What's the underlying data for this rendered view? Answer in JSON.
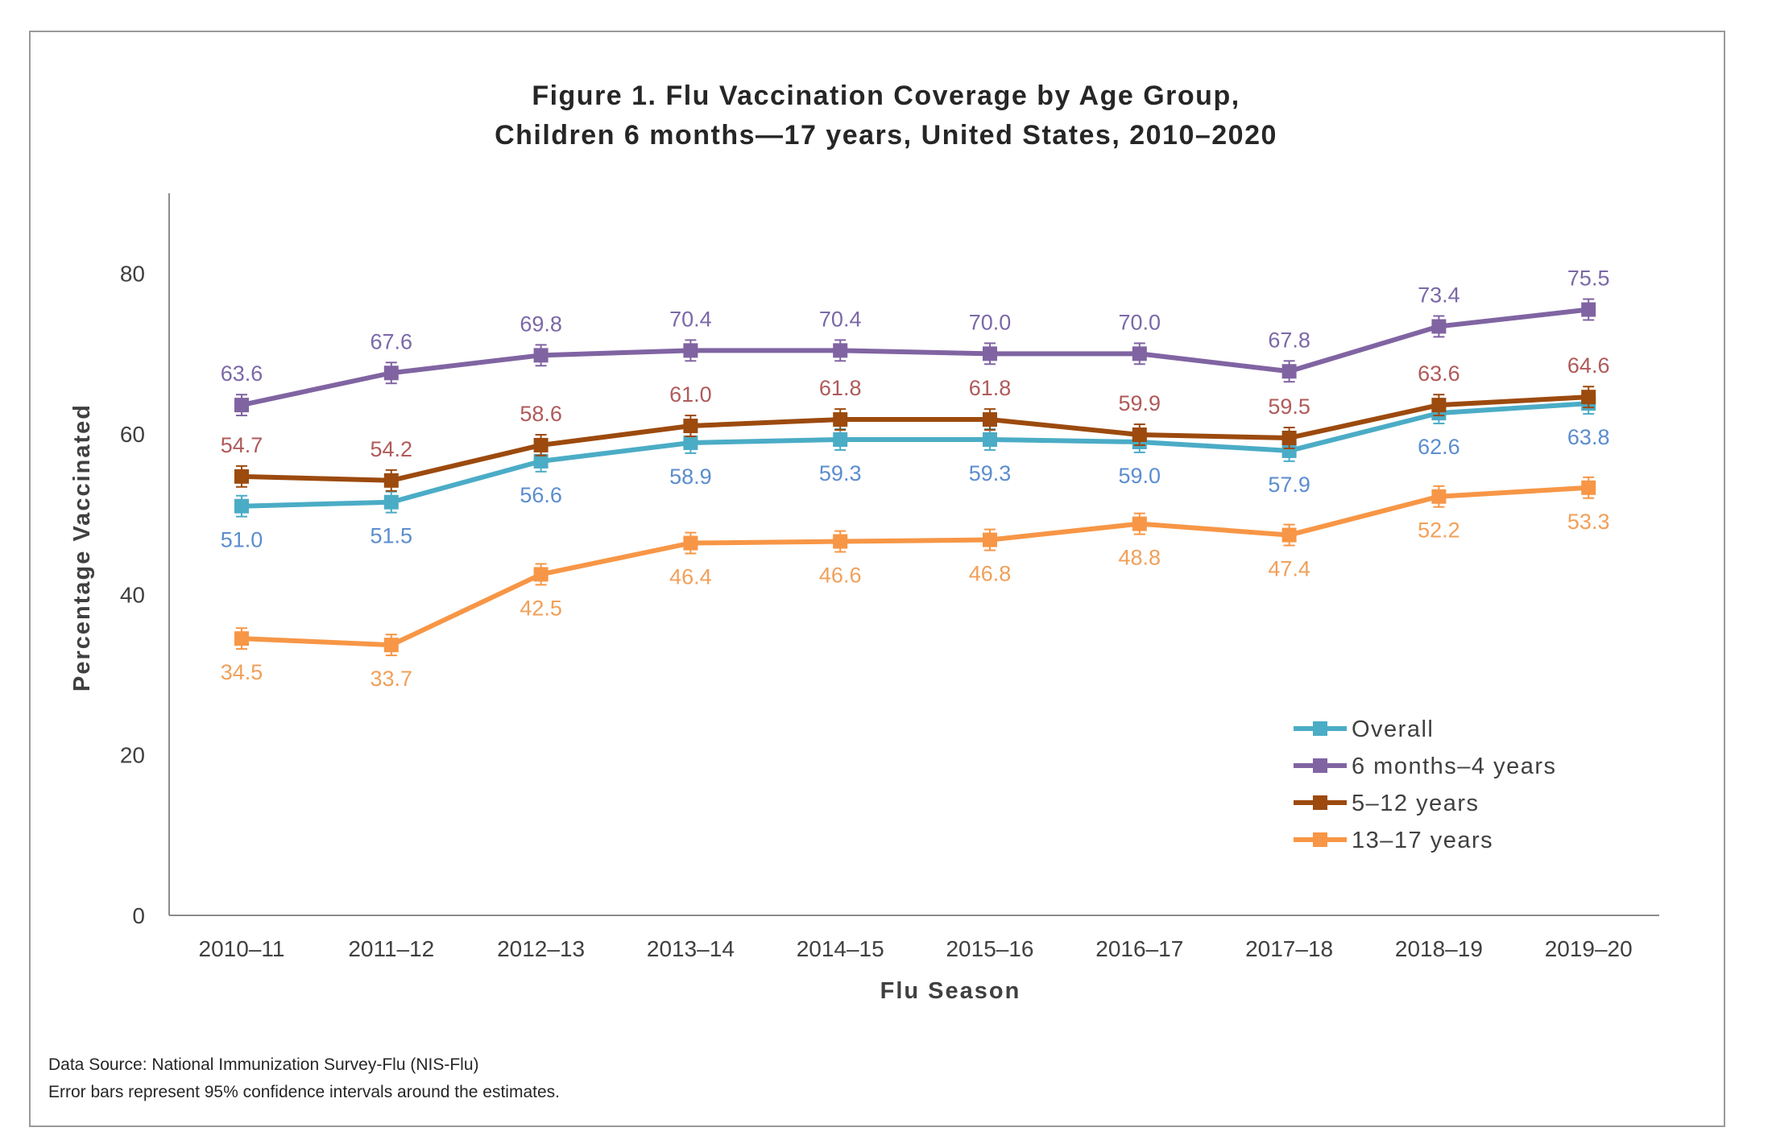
{
  "chart_data": {
    "type": "line",
    "title": "Figure 1. Flu Vaccination Coverage by Age Group,",
    "subtitle": "Children 6 months—17 years, United States, 2010–2020",
    "xlabel": "Flu Season",
    "ylabel": "Percentage Vaccinated",
    "ylim": [
      0,
      90
    ],
    "yticks": [
      0,
      20,
      40,
      60,
      80
    ],
    "grid": false,
    "legend_position": "bottom-right",
    "error_bars": "95% confidence intervals",
    "categories": [
      "2010–11",
      "2011–12",
      "2012–13",
      "2013–14",
      "2014–15",
      "2015–16",
      "2016–17",
      "2017–18",
      "2018–19",
      "2019–20"
    ],
    "series": [
      {
        "name": "Overall",
        "color": "#4BACC6",
        "label_color": "#5B8DCE",
        "values": [
          51.0,
          51.5,
          56.6,
          58.9,
          59.3,
          59.3,
          59.0,
          57.9,
          62.6,
          63.8
        ],
        "labels": [
          "51.0",
          "51.5",
          "56.6",
          "58.9",
          "59.3",
          "59.3",
          "59.0",
          "57.9",
          "62.6",
          "63.8"
        ],
        "label_side": "below"
      },
      {
        "name": "6 months–4 years",
        "color": "#8064A2",
        "label_color": "#7B68A8",
        "values": [
          63.6,
          67.6,
          69.8,
          70.4,
          70.4,
          70.0,
          70.0,
          67.8,
          73.4,
          75.5
        ],
        "labels": [
          "63.6",
          "67.6",
          "69.8",
          "70.4",
          "70.4",
          "70.0",
          "70.0",
          "67.8",
          "73.4",
          "75.5"
        ],
        "label_side": "above"
      },
      {
        "name": "5–12 years",
        "color": "#9C4A0E",
        "label_color": "#B05A5A",
        "values": [
          54.7,
          54.2,
          58.6,
          61.0,
          61.8,
          61.8,
          59.9,
          59.5,
          63.6,
          64.6
        ],
        "labels": [
          "54.7",
          "54.2",
          "58.6",
          "61.0",
          "61.8",
          "61.8",
          "59.9",
          "59.5",
          "63.6",
          "64.6"
        ],
        "label_side": "above"
      },
      {
        "name": "13–17 years",
        "color": "#F79646",
        "label_color": "#F0A05A",
        "values": [
          34.5,
          33.7,
          42.5,
          46.4,
          46.6,
          46.8,
          48.8,
          47.4,
          52.2,
          53.3
        ],
        "labels": [
          "34.5",
          "33.7",
          "42.5",
          "46.4",
          "46.6",
          "46.8",
          "48.8",
          "47.4",
          "52.2",
          "53.3"
        ],
        "label_side": "below"
      }
    ]
  },
  "notes": {
    "source": "Data Source: National Immunization Survey-Flu (NIS-Flu)",
    "error_bars": "Error bars represent 95% confidence intervals around the estimates."
  }
}
